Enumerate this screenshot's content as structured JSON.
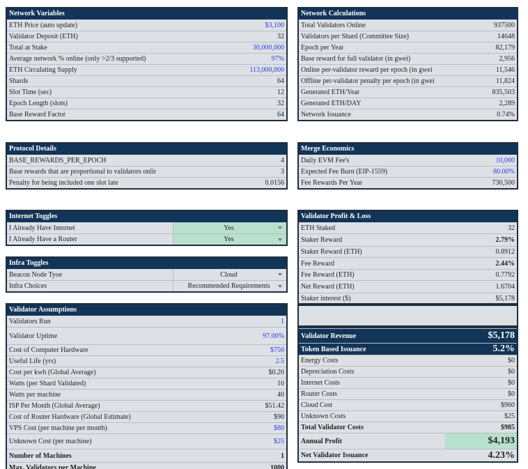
{
  "network_variables": {
    "title": "Network Variables",
    "rows": [
      [
        "ETH Price (auto update)",
        "$3,100"
      ],
      [
        "Validator Deposit (ETH)",
        "32"
      ],
      [
        "Total at Stake",
        "30,000,000"
      ],
      [
        "Average network % online (only >2/3 supported)",
        "97%"
      ],
      [
        "ETH Circulating Supply",
        "113,000,000"
      ],
      [
        "Shards",
        "64"
      ],
      [
        "Slot Time (sec)",
        "12"
      ],
      [
        "Epoch Length (slots)",
        "32"
      ],
      [
        "Base Reward Factor",
        "64"
      ]
    ]
  },
  "network_calculations": {
    "title": "Network Calculations",
    "rows": [
      [
        "Total Validators Online",
        "937500"
      ],
      [
        "Validators per Shard (Committee Size)",
        "14648"
      ],
      [
        "Epoch per Year",
        "82,179"
      ],
      [
        "Base reward for full validator (in gwei)",
        "2,956"
      ],
      [
        "Online per-validator reward per epoch (in gwei",
        "11,546"
      ],
      [
        "Offline per-validator penalty per epoch (in gwei",
        "11,824"
      ],
      [
        "Generated ETH/Year",
        "835,503"
      ],
      [
        "Generated ETH/DAY",
        "2,289"
      ],
      [
        "Network Issuance",
        "0.74%"
      ]
    ]
  },
  "protocol_details": {
    "title": "Protocol Details",
    "rows": [
      [
        "BASE_REWARDS_PER_EPOCH",
        "4"
      ],
      [
        "Base rewards that are proportional to validators onlir",
        "3"
      ],
      [
        "Penalty for being included one slot late",
        "0.0156"
      ]
    ]
  },
  "merge_economics": {
    "title": "Merge Economics",
    "rows": [
      [
        "Daily EVM Fee's",
        "10,000"
      ],
      [
        "Expected Fee Burn (EIP-1559)",
        "80.00%"
      ],
      [
        "Fee Rewards Per Year",
        "730,500"
      ]
    ]
  },
  "internet_toggles": {
    "title": "Internet Toggles",
    "rows": [
      [
        "I Already Have Internet",
        "Yes"
      ],
      [
        "I Already Have a Router",
        "Yes"
      ]
    ]
  },
  "infra_toggles": {
    "title": "Infra Toggles",
    "rows": [
      [
        "Beacon Node Tyoe",
        "Cloud"
      ],
      [
        "Infra Choices",
        "Recommended Requirements"
      ]
    ]
  },
  "validator_assumptions": {
    "title": "Validator Assumptions",
    "rows": [
      [
        "Validators Run",
        "1"
      ],
      [
        "Validator Uptime",
        "97.00%"
      ],
      [
        "Cost of Computer Hardware",
        "$750"
      ],
      [
        "Useful Life (yrs)",
        "2.5"
      ],
      [
        "Cost per kwh (Global Average)",
        "$0.20"
      ],
      [
        "Watts (per Shard Validated)",
        "10"
      ],
      [
        "Watts per machine",
        "40"
      ],
      [
        "ISP Per Month (Global Average)",
        "$51.42"
      ],
      [
        "Cost of Router Hardware (Global Estimate)",
        "$90"
      ],
      [
        "VPS Cost (per machine per month)",
        "$80"
      ],
      [
        "Unknown Cost (per machine)",
        "$25"
      ],
      [
        "Number of Machines",
        "1"
      ],
      [
        "Max. Validators per Machine",
        "1000"
      ]
    ]
  },
  "validator_profit_loss": {
    "title": "Validator Profit & Loss",
    "rows": [
      [
        "ETH Staked",
        "32"
      ],
      [
        "Staker Reward",
        "2.79%"
      ],
      [
        "Staker Reward (ETH)",
        "0.8912"
      ],
      [
        "Fee Reward",
        "2.44%"
      ],
      [
        "Fee Reward (ETH)",
        "0.7792"
      ],
      [
        "Net Reward (ETH)",
        "1.6704"
      ],
      [
        "Staker interest ($)",
        "$5,178"
      ]
    ]
  },
  "validator_costs": {
    "rows": [
      [
        "Validator Revenue",
        "$5,178"
      ],
      [
        "Token Based Issuance",
        "5.2%"
      ],
      [
        "Energy Costs",
        "$0"
      ],
      [
        "Depreciation Costs",
        "$0"
      ],
      [
        "Internet Costs",
        "$0"
      ],
      [
        "Router Costs",
        "$0"
      ],
      [
        "Cloud Cost",
        "$960"
      ],
      [
        "Unknown Costs",
        "$25"
      ],
      [
        "Total Validator Costs",
        "$985"
      ],
      [
        "Annual Profit",
        "$4,193"
      ],
      [
        "Net Validator Issuance",
        "4.23%"
      ]
    ]
  }
}
